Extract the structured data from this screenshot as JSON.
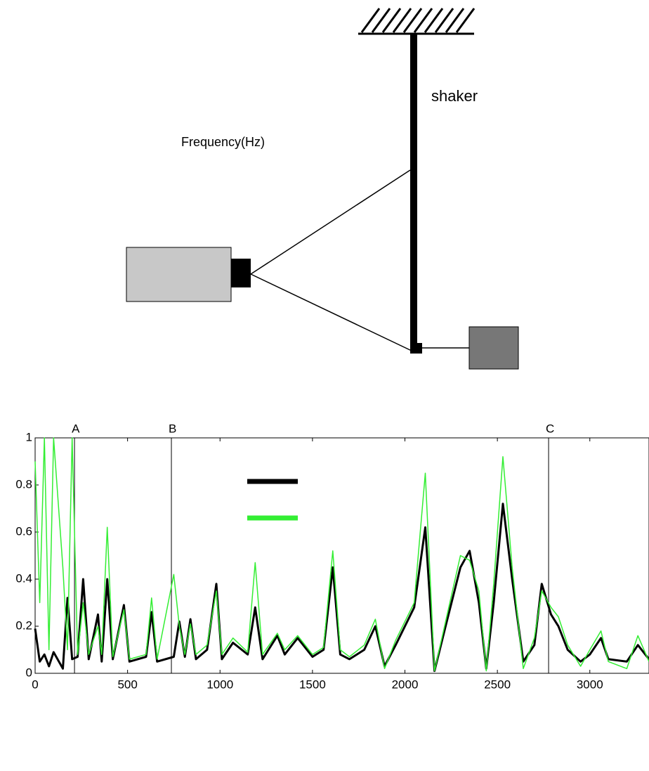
{
  "diagram": {
    "labels": [
      "shaker",
      "Frequency(Hz)"
    ]
  },
  "chart_data": {
    "type": "line",
    "x": [
      0,
      25,
      50,
      75,
      100,
      150,
      175,
      200,
      230,
      260,
      290,
      340,
      360,
      390,
      420,
      480,
      510,
      600,
      630,
      660,
      750,
      780,
      810,
      840,
      870,
      930,
      980,
      1010,
      1070,
      1150,
      1190,
      1230,
      1310,
      1350,
      1420,
      1500,
      1560,
      1610,
      1650,
      1700,
      1780,
      1840,
      1890,
      1950,
      2050,
      2110,
      2160,
      2220,
      2300,
      2350,
      2400,
      2440,
      2480,
      2530,
      2580,
      2640,
      2700,
      2740,
      2790,
      2830,
      2880,
      2950,
      3000,
      3060,
      3100,
      3200,
      3260,
      3320
    ],
    "series": [
      {
        "color": "#000000",
        "values": [
          0.19,
          0.05,
          0.08,
          0.03,
          0.09,
          0.02,
          0.32,
          0.06,
          0.07,
          0.4,
          0.06,
          0.25,
          0.05,
          0.4,
          0.06,
          0.29,
          0.05,
          0.07,
          0.26,
          0.05,
          0.07,
          0.22,
          0.07,
          0.23,
          0.06,
          0.1,
          0.38,
          0.06,
          0.13,
          0.08,
          0.28,
          0.06,
          0.16,
          0.08,
          0.15,
          0.07,
          0.1,
          0.45,
          0.08,
          0.06,
          0.1,
          0.2,
          0.03,
          0.12,
          0.28,
          0.62,
          0.01,
          0.2,
          0.45,
          0.52,
          0.3,
          0.02,
          0.3,
          0.72,
          0.4,
          0.05,
          0.12,
          0.38,
          0.25,
          0.2,
          0.1,
          0.05,
          0.08,
          0.15,
          0.06,
          0.05,
          0.12,
          0.06
        ]
      },
      {
        "color": "#33ee33",
        "values": [
          0.9,
          0.3,
          1,
          0.1,
          1,
          0.45,
          0.1,
          1,
          0.08,
          0.3,
          0.08,
          0.2,
          0.08,
          0.62,
          0.07,
          0.27,
          0.06,
          0.08,
          0.32,
          0.06,
          0.42,
          0.2,
          0.08,
          0.21,
          0.08,
          0.12,
          0.35,
          0.08,
          0.15,
          0.09,
          0.47,
          0.08,
          0.17,
          0.1,
          0.16,
          0.08,
          0.11,
          0.52,
          0.1,
          0.07,
          0.12,
          0.23,
          0.02,
          0.14,
          0.3,
          0.85,
          0.01,
          0.22,
          0.5,
          0.48,
          0.35,
          0.01,
          0.38,
          0.92,
          0.45,
          0.02,
          0.15,
          0.35,
          0.28,
          0.24,
          0.12,
          0.03,
          0.1,
          0.18,
          0.05,
          0.02,
          0.16,
          0.05
        ]
      }
    ],
    "xlim": [
      0,
      3320
    ],
    "ylim": [
      0,
      1
    ],
    "xticks": [
      0,
      500,
      1000,
      1500,
      2000,
      2500,
      3000
    ],
    "yticks": [
      0,
      0.2,
      0.4,
      0.6,
      0.8,
      1
    ],
    "annotations": [
      {
        "label": "A",
        "x": 213
      },
      {
        "label": "B",
        "x": 737
      },
      {
        "label": "C",
        "x": 2777
      }
    ]
  }
}
